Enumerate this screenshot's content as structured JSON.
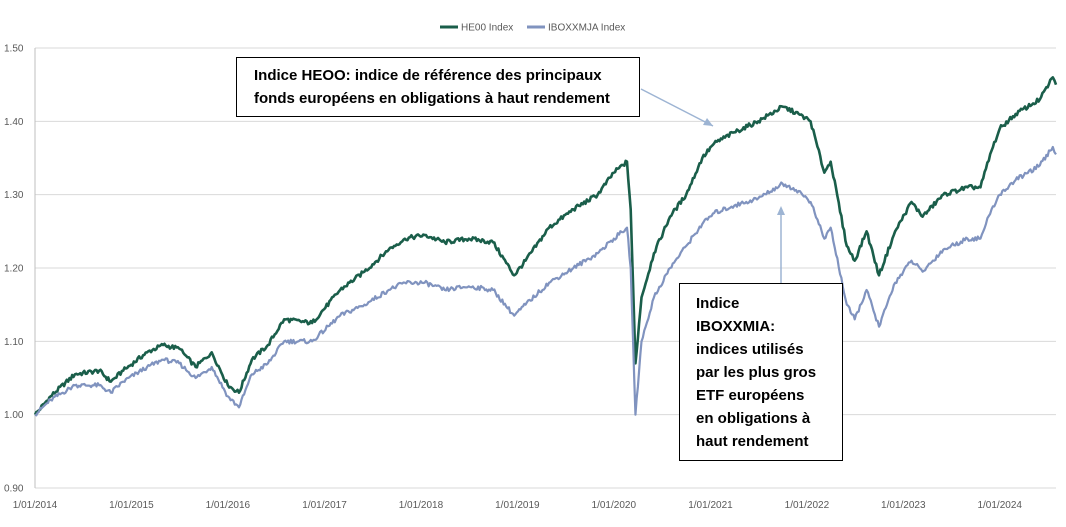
{
  "chart_data": {
    "type": "line",
    "xlabel": "",
    "ylabel": "",
    "ylim": [
      0.9,
      1.5
    ],
    "xlim": [
      "2014-01-01",
      "2024-08-01"
    ],
    "yticks": [
      0.9,
      1.0,
      1.1,
      1.2,
      1.3,
      1.4,
      1.5
    ],
    "ytick_labels": [
      "0.90",
      "1.00",
      "1.10",
      "1.20",
      "1.30",
      "1.40",
      "1.50"
    ],
    "xtick_labels": [
      "1/01/2014",
      "1/01/2015",
      "1/01/2016",
      "1/01/2017",
      "1/01/2018",
      "1/01/2019",
      "1/01/2020",
      "1/01/2021",
      "1/01/2022",
      "1/01/2023",
      "1/01/2024"
    ],
    "grid": true,
    "legend_position": "top-center",
    "series": [
      {
        "name": "HE00 Index",
        "color": "#1a5e4a",
        "points": [
          [
            "2014-01-01",
            1.0
          ],
          [
            "2014-03-01",
            1.025
          ],
          [
            "2014-06-01",
            1.055
          ],
          [
            "2014-09-01",
            1.06
          ],
          [
            "2014-10-15",
            1.045
          ],
          [
            "2014-12-01",
            1.06
          ],
          [
            "2015-03-01",
            1.085
          ],
          [
            "2015-05-01",
            1.095
          ],
          [
            "2015-07-01",
            1.09
          ],
          [
            "2015-09-01",
            1.065
          ],
          [
            "2015-11-01",
            1.085
          ],
          [
            "2016-01-01",
            1.04
          ],
          [
            "2016-02-12",
            1.03
          ],
          [
            "2016-04-01",
            1.075
          ],
          [
            "2016-06-01",
            1.095
          ],
          [
            "2016-08-01",
            1.13
          ],
          [
            "2016-11-15",
            1.125
          ],
          [
            "2017-03-01",
            1.17
          ],
          [
            "2017-06-01",
            1.195
          ],
          [
            "2017-09-01",
            1.225
          ],
          [
            "2017-11-01",
            1.24
          ],
          [
            "2018-01-15",
            1.245
          ],
          [
            "2018-04-01",
            1.235
          ],
          [
            "2018-07-01",
            1.24
          ],
          [
            "2018-10-01",
            1.235
          ],
          [
            "2018-12-20",
            1.19
          ],
          [
            "2019-02-01",
            1.21
          ],
          [
            "2019-05-01",
            1.255
          ],
          [
            "2019-08-01",
            1.28
          ],
          [
            "2019-11-01",
            1.3
          ],
          [
            "2020-01-01",
            1.33
          ],
          [
            "2020-02-20",
            1.345
          ],
          [
            "2020-03-05",
            1.28
          ],
          [
            "2020-03-23",
            1.07
          ],
          [
            "2020-04-15",
            1.16
          ],
          [
            "2020-06-01",
            1.22
          ],
          [
            "2020-08-01",
            1.27
          ],
          [
            "2020-10-01",
            1.3
          ],
          [
            "2020-12-01",
            1.35
          ],
          [
            "2021-01-15",
            1.37
          ],
          [
            "2021-04-01",
            1.385
          ],
          [
            "2021-07-01",
            1.4
          ],
          [
            "2021-10-01",
            1.42
          ],
          [
            "2021-12-01",
            1.41
          ],
          [
            "2022-01-15",
            1.4
          ],
          [
            "2022-03-08",
            1.33
          ],
          [
            "2022-04-01",
            1.345
          ],
          [
            "2022-06-01",
            1.23
          ],
          [
            "2022-07-01",
            1.21
          ],
          [
            "2022-08-15",
            1.25
          ],
          [
            "2022-10-01",
            1.19
          ],
          [
            "2022-12-01",
            1.25
          ],
          [
            "2023-02-01",
            1.29
          ],
          [
            "2023-03-15",
            1.27
          ],
          [
            "2023-06-01",
            1.3
          ],
          [
            "2023-09-01",
            1.31
          ],
          [
            "2023-10-20",
            1.31
          ],
          [
            "2023-12-01",
            1.36
          ],
          [
            "2024-01-01",
            1.39
          ],
          [
            "2024-03-01",
            1.41
          ],
          [
            "2024-06-01",
            1.43
          ],
          [
            "2024-07-20",
            1.46
          ],
          [
            "2024-08-01",
            1.45
          ]
        ]
      },
      {
        "name": "IBOXXMJA Index",
        "color": "#8093bf",
        "points": [
          [
            "2014-01-01",
            1.0
          ],
          [
            "2014-03-01",
            1.02
          ],
          [
            "2014-06-01",
            1.04
          ],
          [
            "2014-09-01",
            1.04
          ],
          [
            "2014-10-15",
            1.03
          ],
          [
            "2014-12-01",
            1.045
          ],
          [
            "2015-03-01",
            1.065
          ],
          [
            "2015-05-01",
            1.075
          ],
          [
            "2015-07-01",
            1.07
          ],
          [
            "2015-09-01",
            1.05
          ],
          [
            "2015-11-01",
            1.065
          ],
          [
            "2016-01-01",
            1.025
          ],
          [
            "2016-02-12",
            1.01
          ],
          [
            "2016-04-01",
            1.055
          ],
          [
            "2016-06-01",
            1.07
          ],
          [
            "2016-08-01",
            1.1
          ],
          [
            "2016-11-15",
            1.1
          ],
          [
            "2017-03-01",
            1.135
          ],
          [
            "2017-06-01",
            1.15
          ],
          [
            "2017-09-01",
            1.17
          ],
          [
            "2017-11-01",
            1.18
          ],
          [
            "2018-01-15",
            1.18
          ],
          [
            "2018-04-01",
            1.17
          ],
          [
            "2018-07-01",
            1.175
          ],
          [
            "2018-10-01",
            1.17
          ],
          [
            "2018-12-20",
            1.135
          ],
          [
            "2019-02-01",
            1.15
          ],
          [
            "2019-05-01",
            1.18
          ],
          [
            "2019-08-01",
            1.2
          ],
          [
            "2019-11-01",
            1.22
          ],
          [
            "2020-01-01",
            1.24
          ],
          [
            "2020-02-20",
            1.255
          ],
          [
            "2020-03-05",
            1.2
          ],
          [
            "2020-03-23",
            1.0
          ],
          [
            "2020-04-15",
            1.1
          ],
          [
            "2020-06-01",
            1.16
          ],
          [
            "2020-08-01",
            1.2
          ],
          [
            "2020-10-01",
            1.23
          ],
          [
            "2020-12-01",
            1.26
          ],
          [
            "2021-01-15",
            1.275
          ],
          [
            "2021-04-01",
            1.285
          ],
          [
            "2021-07-01",
            1.295
          ],
          [
            "2021-10-01",
            1.315
          ],
          [
            "2021-12-01",
            1.305
          ],
          [
            "2022-01-15",
            1.29
          ],
          [
            "2022-03-08",
            1.24
          ],
          [
            "2022-04-01",
            1.255
          ],
          [
            "2022-06-01",
            1.15
          ],
          [
            "2022-07-01",
            1.13
          ],
          [
            "2022-08-15",
            1.17
          ],
          [
            "2022-10-01",
            1.12
          ],
          [
            "2022-12-01",
            1.18
          ],
          [
            "2023-02-01",
            1.21
          ],
          [
            "2023-03-15",
            1.195
          ],
          [
            "2023-06-01",
            1.225
          ],
          [
            "2023-09-01",
            1.24
          ],
          [
            "2023-10-20",
            1.24
          ],
          [
            "2023-12-01",
            1.28
          ],
          [
            "2024-01-01",
            1.3
          ],
          [
            "2024-03-01",
            1.32
          ],
          [
            "2024-06-01",
            1.34
          ],
          [
            "2024-07-20",
            1.365
          ],
          [
            "2024-08-01",
            1.355
          ]
        ]
      }
    ],
    "annotations": [
      {
        "id": "heoo",
        "lines": [
          "Indice HEOO: indice de référence des principaux",
          "fonds européens en obligations à haut rendement"
        ],
        "points_to": "HE00 Index"
      },
      {
        "id": "ibox",
        "lines": [
          "Indice",
          "IBOXXMIA:",
          "indices utilisés",
          "par les plus gros",
          "ETF européens",
          "en obligations à",
          "haut rendement"
        ],
        "points_to": "IBOXXMJA Index"
      }
    ]
  }
}
